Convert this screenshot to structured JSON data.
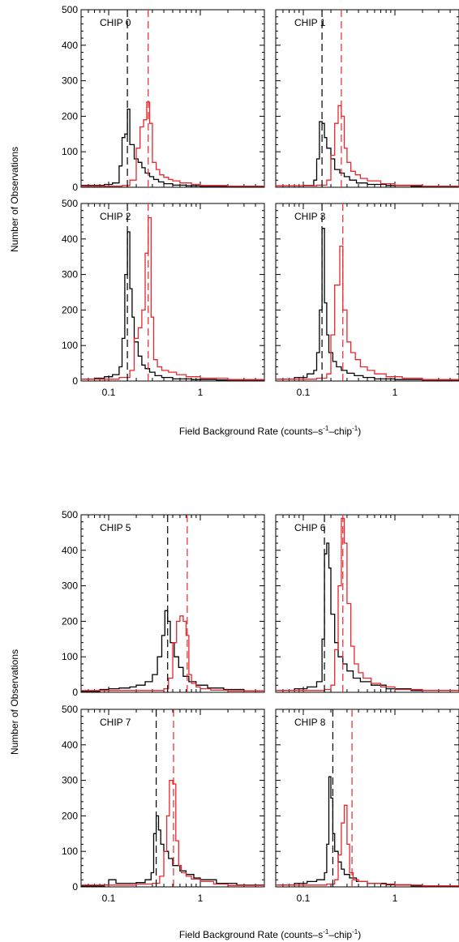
{
  "figure": {
    "ylabel": "Number of Observations",
    "xlabel_main": "Field Background Rate (counts–s",
    "xlabel_sup1": "-1",
    "xlabel_mid": "–chip",
    "xlabel_sup2": "-1",
    "xlabel_end": ")"
  },
  "colors": {
    "black_series": "#000000",
    "red_series": "#e8262b"
  },
  "chart_data": [
    {
      "type": "histogram",
      "title": "CHIP 0",
      "x_scale": "log",
      "xlim": [
        0.05,
        5
      ],
      "ylim": [
        0,
        500
      ],
      "xticks": [
        0.1,
        1
      ],
      "xtick_labels": [
        "0.1",
        "1"
      ],
      "yticks": [
        0,
        100,
        200,
        300,
        400,
        500
      ],
      "vlines": {
        "black": 0.16,
        "red": 0.27
      },
      "series": [
        {
          "color": "black",
          "x": [
            0.05,
            0.07,
            0.09,
            0.11,
            0.13,
            0.14,
            0.15,
            0.16,
            0.17,
            0.19,
            0.21,
            0.23,
            0.25,
            0.28,
            0.31,
            0.35,
            0.4,
            0.5,
            0.7,
            1.0,
            2.0,
            5.0
          ],
          "y": [
            5,
            5,
            8,
            12,
            60,
            140,
            150,
            220,
            120,
            80,
            70,
            55,
            40,
            30,
            22,
            15,
            10,
            6,
            4,
            3,
            2,
            2
          ]
        },
        {
          "color": "red",
          "x": [
            0.05,
            0.1,
            0.14,
            0.17,
            0.2,
            0.22,
            0.24,
            0.26,
            0.28,
            0.3,
            0.33,
            0.36,
            0.4,
            0.45,
            0.5,
            0.6,
            0.8,
            1.0,
            2.0,
            5.0
          ],
          "y": [
            3,
            3,
            5,
            20,
            110,
            170,
            190,
            240,
            180,
            70,
            50,
            35,
            28,
            22,
            18,
            12,
            8,
            5,
            3,
            2
          ]
        }
      ]
    },
    {
      "type": "histogram",
      "title": "CHIP 1",
      "x_scale": "log",
      "xlim": [
        0.05,
        5
      ],
      "ylim": [
        0,
        500
      ],
      "xticks": [
        0.1,
        1
      ],
      "xtick_labels": [
        "0.1",
        "1"
      ],
      "yticks": [
        0,
        100,
        200,
        300,
        400,
        500
      ],
      "vlines": {
        "black": 0.16,
        "red": 0.26
      },
      "series": [
        {
          "color": "black",
          "x": [
            0.05,
            0.1,
            0.13,
            0.14,
            0.15,
            0.16,
            0.17,
            0.18,
            0.2,
            0.22,
            0.25,
            0.28,
            0.32,
            0.38,
            0.5,
            0.8,
            1.5,
            5.0
          ],
          "y": [
            4,
            5,
            20,
            80,
            185,
            180,
            140,
            110,
            80,
            50,
            40,
            30,
            20,
            12,
            8,
            5,
            3,
            2
          ]
        },
        {
          "color": "red",
          "x": [
            0.05,
            0.1,
            0.14,
            0.18,
            0.2,
            0.22,
            0.24,
            0.26,
            0.28,
            0.3,
            0.33,
            0.37,
            0.42,
            0.5,
            0.7,
            1.0,
            2.0,
            5.0
          ],
          "y": [
            4,
            4,
            6,
            20,
            90,
            180,
            230,
            200,
            110,
            70,
            45,
            35,
            25,
            18,
            10,
            6,
            3,
            2
          ]
        }
      ]
    },
    {
      "type": "histogram",
      "title": "CHIP 2",
      "x_scale": "log",
      "xlim": [
        0.05,
        5
      ],
      "ylim": [
        0,
        500
      ],
      "xticks": [
        0.1,
        1
      ],
      "xtick_labels": [
        "0.1",
        "1"
      ],
      "yticks": [
        0,
        100,
        200,
        300,
        400,
        500
      ],
      "vlines": {
        "black": 0.16,
        "red": 0.27
      },
      "series": [
        {
          "color": "black",
          "x": [
            0.05,
            0.07,
            0.09,
            0.11,
            0.13,
            0.14,
            0.15,
            0.16,
            0.17,
            0.18,
            0.19,
            0.21,
            0.23,
            0.25,
            0.28,
            0.32,
            0.38,
            0.5,
            0.8,
            1.5,
            5.0
          ],
          "y": [
            5,
            8,
            12,
            18,
            40,
            120,
            300,
            420,
            260,
            180,
            110,
            70,
            45,
            35,
            25,
            15,
            10,
            6,
            4,
            3,
            2
          ]
        },
        {
          "color": "red",
          "x": [
            0.05,
            0.1,
            0.13,
            0.17,
            0.19,
            0.21,
            0.23,
            0.25,
            0.27,
            0.29,
            0.31,
            0.34,
            0.38,
            0.45,
            0.55,
            0.7,
            1.0,
            2.0,
            5.0
          ],
          "y": [
            5,
            5,
            10,
            30,
            120,
            150,
            200,
            360,
            460,
            180,
            60,
            40,
            30,
            25,
            18,
            12,
            8,
            4,
            3
          ]
        }
      ]
    },
    {
      "type": "histogram",
      "title": "CHIP 3",
      "x_scale": "log",
      "xlim": [
        0.05,
        5
      ],
      "ylim": [
        0,
        500
      ],
      "xticks": [
        0.1,
        1
      ],
      "xtick_labels": [
        "0.1",
        "1"
      ],
      "yticks": [
        0,
        100,
        200,
        300,
        400,
        500
      ],
      "vlines": {
        "black": 0.16,
        "red": 0.27
      },
      "series": [
        {
          "color": "black",
          "x": [
            0.05,
            0.08,
            0.11,
            0.13,
            0.14,
            0.15,
            0.16,
            0.17,
            0.18,
            0.19,
            0.21,
            0.23,
            0.26,
            0.3,
            0.36,
            0.45,
            0.6,
            1.0,
            2.0,
            5.0
          ],
          "y": [
            5,
            10,
            20,
            30,
            80,
            200,
            430,
            220,
            130,
            80,
            55,
            40,
            30,
            22,
            15,
            10,
            6,
            4,
            3,
            2
          ]
        },
        {
          "color": "red",
          "x": [
            0.05,
            0.1,
            0.14,
            0.18,
            0.2,
            0.22,
            0.25,
            0.27,
            0.3,
            0.33,
            0.37,
            0.42,
            0.5,
            0.6,
            0.8,
            1.2,
            2.0,
            5.0
          ],
          "y": [
            5,
            5,
            8,
            20,
            130,
            270,
            380,
            200,
            110,
            80,
            60,
            40,
            30,
            20,
            12,
            8,
            4,
            3
          ]
        }
      ]
    },
    {
      "type": "histogram",
      "title": "CHIP 5",
      "x_scale": "log",
      "xlim": [
        0.05,
        5
      ],
      "ylim": [
        0,
        500
      ],
      "xticks": [
        0.1,
        1
      ],
      "xtick_labels": [
        "0.1",
        "1"
      ],
      "yticks": [
        0,
        100,
        200,
        300,
        400,
        500
      ],
      "vlines": {
        "black": 0.44,
        "red": 0.72
      },
      "series": [
        {
          "color": "black",
          "x": [
            0.05,
            0.08,
            0.1,
            0.13,
            0.17,
            0.2,
            0.25,
            0.3,
            0.34,
            0.38,
            0.41,
            0.44,
            0.47,
            0.52,
            0.58,
            0.65,
            0.75,
            0.9,
            1.2,
            1.8,
            3.0,
            5.0
          ],
          "y": [
            2,
            8,
            10,
            12,
            15,
            20,
            30,
            50,
            100,
            160,
            230,
            200,
            140,
            100,
            70,
            45,
            30,
            20,
            12,
            8,
            4,
            3
          ]
        },
        {
          "color": "red",
          "x": [
            0.05,
            0.2,
            0.3,
            0.4,
            0.45,
            0.5,
            0.55,
            0.6,
            0.65,
            0.7,
            0.75,
            0.8,
            0.9,
            1.0,
            1.3,
            2.0,
            5.0
          ],
          "y": [
            5,
            5,
            5,
            10,
            40,
            140,
            200,
            215,
            200,
            160,
            50,
            25,
            15,
            10,
            6,
            4,
            3
          ]
        }
      ]
    },
    {
      "type": "histogram",
      "title": "CHIP 6",
      "x_scale": "log",
      "xlim": [
        0.05,
        5
      ],
      "ylim": [
        0,
        500
      ],
      "xticks": [
        0.1,
        1
      ],
      "xtick_labels": [
        "0.1",
        "1"
      ],
      "yticks": [
        0,
        100,
        200,
        300,
        400,
        500
      ],
      "vlines": {
        "black": 0.17,
        "red": 0.27
      },
      "series": [
        {
          "color": "black",
          "x": [
            0.05,
            0.08,
            0.11,
            0.14,
            0.16,
            0.17,
            0.18,
            0.19,
            0.2,
            0.22,
            0.24,
            0.27,
            0.3,
            0.35,
            0.42,
            0.55,
            0.8,
            1.5,
            5.0
          ],
          "y": [
            5,
            10,
            15,
            30,
            150,
            390,
            420,
            350,
            220,
            140,
            100,
            80,
            60,
            40,
            30,
            20,
            10,
            5,
            3
          ]
        },
        {
          "color": "red",
          "x": [
            0.05,
            0.12,
            0.17,
            0.2,
            0.22,
            0.24,
            0.26,
            0.28,
            0.3,
            0.33,
            0.36,
            0.4,
            0.45,
            0.55,
            0.7,
            1.0,
            2.0,
            5.0
          ],
          "y": [
            5,
            5,
            8,
            20,
            120,
            300,
            490,
            420,
            250,
            130,
            80,
            55,
            40,
            25,
            15,
            8,
            5,
            3
          ]
        }
      ]
    },
    {
      "type": "histogram",
      "title": "CHIP 7",
      "x_scale": "log",
      "xlim": [
        0.05,
        5
      ],
      "ylim": [
        0,
        500
      ],
      "xticks": [
        0.1,
        1
      ],
      "xtick_labels": [
        "0.1",
        "1"
      ],
      "yticks": [
        0,
        100,
        200,
        300,
        400,
        500
      ],
      "vlines": {
        "black": 0.33,
        "red": 0.51
      },
      "series": [
        {
          "color": "black",
          "x": [
            0.05,
            0.09,
            0.1,
            0.12,
            0.15,
            0.2,
            0.25,
            0.29,
            0.31,
            0.33,
            0.35,
            0.37,
            0.4,
            0.45,
            0.5,
            0.6,
            0.7,
            0.85,
            1.0,
            1.5,
            2.5,
            5.0
          ],
          "y": [
            2,
            5,
            20,
            10,
            10,
            12,
            20,
            40,
            150,
            200,
            160,
            120,
            100,
            80,
            60,
            45,
            35,
            25,
            20,
            10,
            5,
            3
          ]
        },
        {
          "color": "red",
          "x": [
            0.05,
            0.1,
            0.2,
            0.3,
            0.36,
            0.4,
            0.43,
            0.46,
            0.5,
            0.54,
            0.58,
            0.62,
            0.7,
            0.8,
            1.0,
            1.4,
            2.0,
            5.0
          ],
          "y": [
            5,
            5,
            8,
            10,
            30,
            100,
            200,
            300,
            290,
            130,
            60,
            40,
            30,
            22,
            15,
            8,
            4,
            3
          ]
        }
      ]
    },
    {
      "type": "histogram",
      "title": "CHIP 8",
      "x_scale": "log",
      "xlim": [
        0.05,
        5
      ],
      "ylim": [
        0,
        500
      ],
      "xticks": [
        0.1,
        1
      ],
      "xtick_labels": [
        "0.1",
        "1"
      ],
      "yticks": [
        0,
        100,
        200,
        300,
        400,
        500
      ],
      "vlines": {
        "black": 0.21,
        "red": 0.34
      },
      "series": [
        {
          "color": "black",
          "x": [
            0.05,
            0.08,
            0.11,
            0.14,
            0.17,
            0.18,
            0.19,
            0.2,
            0.21,
            0.22,
            0.24,
            0.26,
            0.28,
            0.32,
            0.38,
            0.5,
            0.8,
            1.5,
            5.0
          ],
          "y": [
            5,
            10,
            15,
            20,
            40,
            120,
            310,
            250,
            150,
            100,
            70,
            50,
            35,
            25,
            15,
            10,
            6,
            3,
            2
          ]
        },
        {
          "color": "red",
          "x": [
            0.05,
            0.12,
            0.18,
            0.22,
            0.24,
            0.26,
            0.28,
            0.3,
            0.32,
            0.35,
            0.4,
            0.5,
            0.7,
            1.0,
            2.0,
            5.0
          ],
          "y": [
            5,
            5,
            8,
            20,
            90,
            180,
            230,
            120,
            40,
            20,
            15,
            10,
            8,
            5,
            3,
            2
          ]
        }
      ]
    }
  ]
}
